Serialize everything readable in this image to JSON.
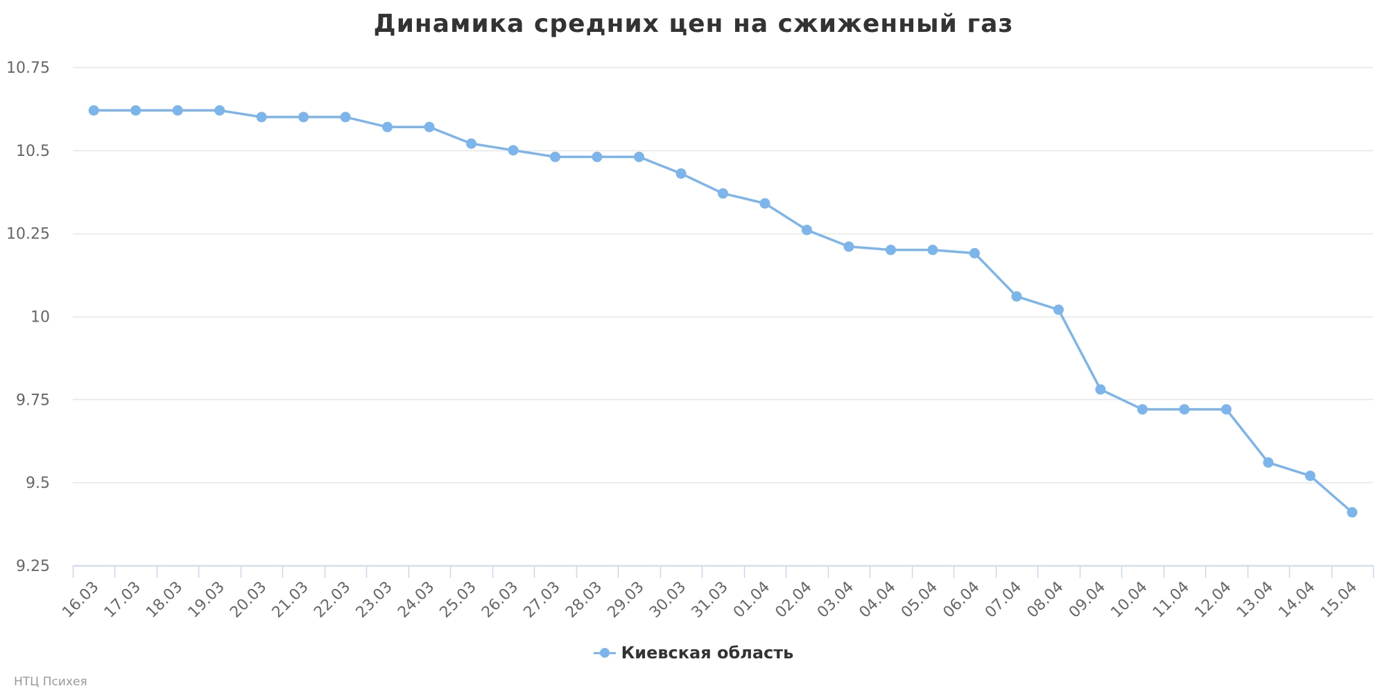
{
  "chart_data": {
    "type": "line",
    "title": "Динамика средних цен на сжиженный газ",
    "xlabel": "",
    "ylabel": "",
    "categories": [
      "16.03",
      "17.03",
      "18.03",
      "19.03",
      "20.03",
      "21.03",
      "22.03",
      "23.03",
      "24.03",
      "25.03",
      "26.03",
      "27.03",
      "28.03",
      "29.03",
      "30.03",
      "31.03",
      "01.04",
      "02.04",
      "03.04",
      "04.04",
      "05.04",
      "06.04",
      "07.04",
      "08.04",
      "09.04",
      "10.04",
      "11.04",
      "12.04",
      "13.04",
      "14.04",
      "15.04"
    ],
    "series": [
      {
        "name": "Киевская область",
        "color": "#7cb5ec",
        "values": [
          10.62,
          10.62,
          10.62,
          10.62,
          10.6,
          10.6,
          10.6,
          10.57,
          10.57,
          10.52,
          10.5,
          10.48,
          10.48,
          10.48,
          10.43,
          10.37,
          10.34,
          10.26,
          10.21,
          10.2,
          10.2,
          10.19,
          10.06,
          10.02,
          9.78,
          9.72,
          9.72,
          9.72,
          9.56,
          9.52,
          9.41
        ]
      }
    ],
    "ylim": [
      9.25,
      10.75
    ],
    "yticks": [
      9.25,
      9.5,
      9.75,
      10,
      10.25,
      10.5,
      10.75
    ],
    "ytick_labels": [
      "9.25",
      "9.5",
      "9.75",
      "10",
      "10.25",
      "10.5",
      "10.75"
    ],
    "grid": true,
    "legend_position": "bottom-center"
  },
  "credits": "НТЦ Психея",
  "colors": {
    "series": "#7cb5ec",
    "grid": "#e6e6e6",
    "axis": "#ccd6eb",
    "text": "#333333",
    "tick_text": "#666666",
    "credits": "#999999"
  }
}
